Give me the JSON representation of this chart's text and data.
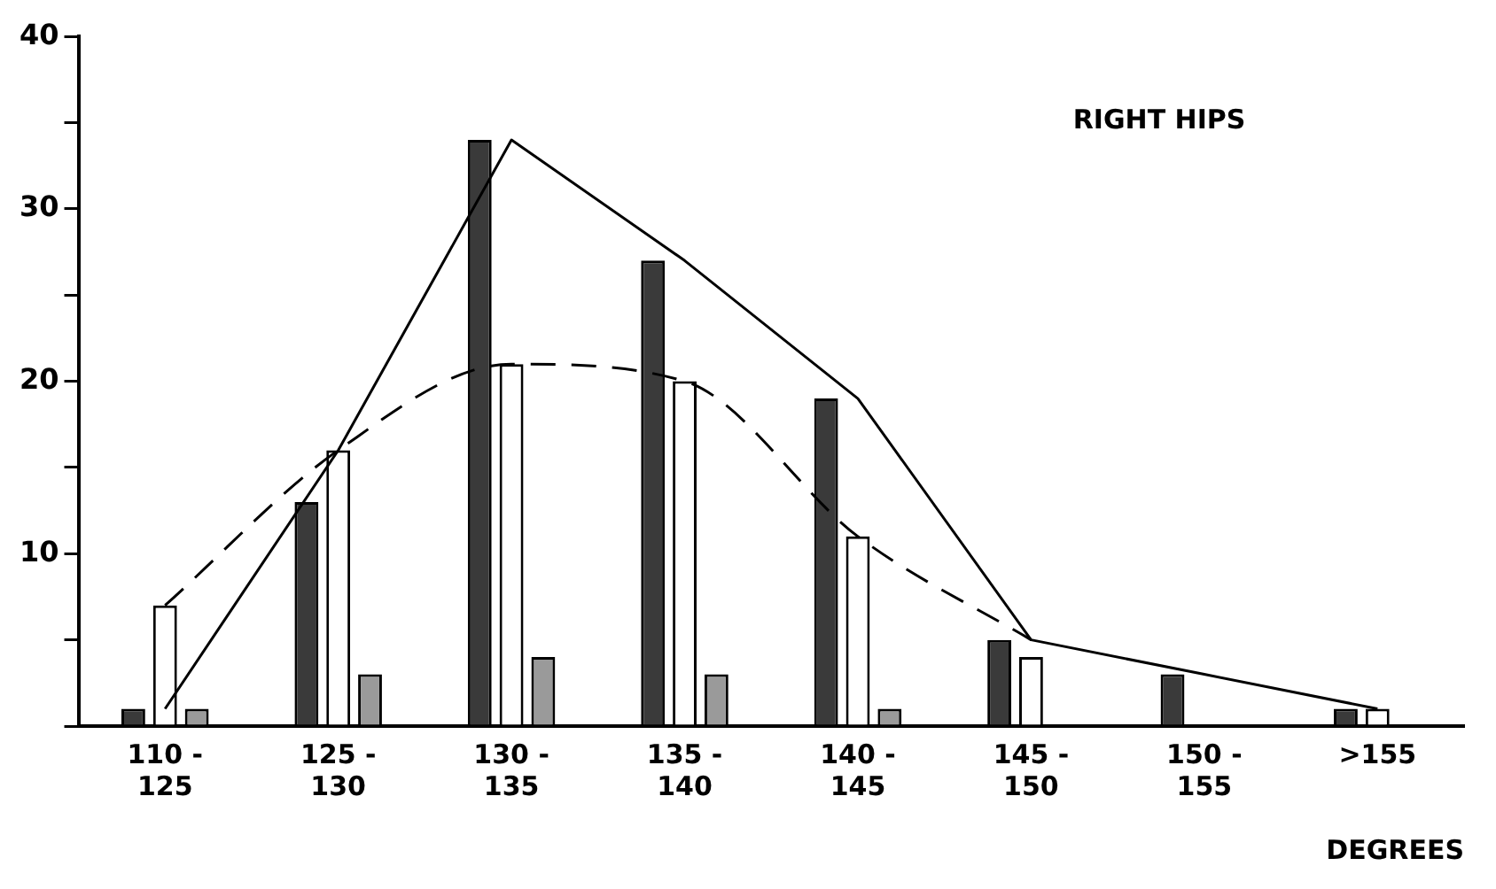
{
  "chart_data": {
    "type": "bar",
    "title": "RIGHT HIPS",
    "xlabel": "DEGREES",
    "categories": [
      "110 - 125",
      "125 - 130",
      "130 - 135",
      "135 - 140",
      "140 - 145",
      "145 - 150",
      "150 - 155",
      ">155"
    ],
    "series": [
      {
        "color": "#3a3a3a",
        "values": [
          1,
          13,
          34,
          27,
          19,
          5,
          3,
          1
        ]
      },
      {
        "color": "#ffffff",
        "values": [
          7,
          16,
          21,
          20,
          11,
          4,
          null,
          1
        ]
      },
      {
        "color": "#9a9a9a",
        "values": [
          1,
          3,
          4,
          3,
          1,
          null,
          null,
          null
        ]
      },
      {
        "type": "line",
        "color": "#000000",
        "line_style": "solid",
        "values": [
          1,
          16,
          34,
          27,
          19,
          5,
          3,
          1
        ]
      },
      {
        "type": "line",
        "color": "#000000",
        "line_style": "dashed",
        "values": [
          7,
          16,
          21,
          20,
          11,
          5,
          null,
          null
        ]
      }
    ],
    "ylim": [
      0,
      40
    ],
    "yticks": [
      {
        "value": 0,
        "label": null
      },
      {
        "value": 5,
        "label": null
      },
      10,
      {
        "value": 15,
        "label": null
      },
      20,
      {
        "value": 25,
        "label": null
      },
      30,
      {
        "value": 35,
        "label": null
      },
      40
    ],
    "grid": false,
    "legend": false,
    "marker": "none"
  }
}
